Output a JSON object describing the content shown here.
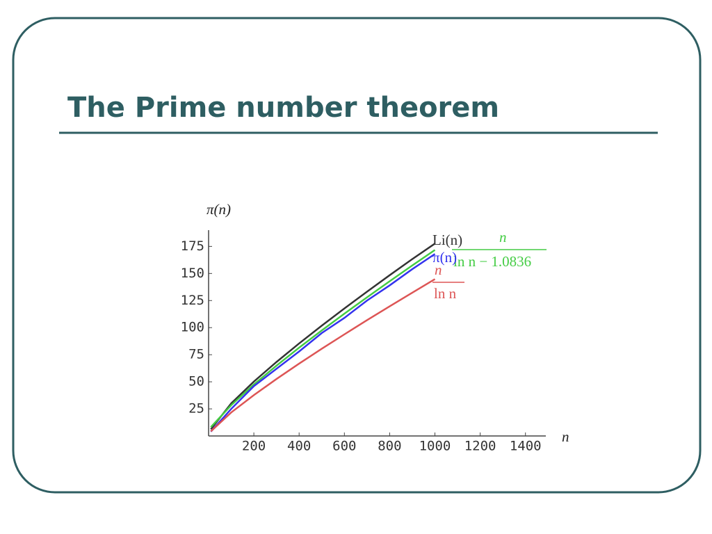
{
  "title": "The Prime number theorem",
  "chart_data": {
    "type": "line",
    "x_label": "n",
    "y_label": "π(n)",
    "x": [
      10,
      100,
      200,
      300,
      400,
      500,
      600,
      700,
      800,
      900,
      1000
    ],
    "xlim": [
      0,
      1490
    ],
    "ylim": [
      0,
      190
    ],
    "xticks": [
      200,
      400,
      600,
      800,
      1000,
      1200,
      1400
    ],
    "yticks": [
      25,
      50,
      75,
      100,
      125,
      150,
      175
    ],
    "series": [
      {
        "name": "Li(n)",
        "color": "#333333",
        "values": [
          6.2,
          30.1,
          50.2,
          68.3,
          85.4,
          101.8,
          117.7,
          133.2,
          148.4,
          163.3,
          177.6
        ]
      },
      {
        "name": {
          "numerator": "n",
          "denominator": "ln n − 1.0836"
        },
        "color": "#44cc44",
        "values": [
          8.2,
          28.4,
          47.5,
          64.9,
          81.5,
          97.4,
          112.9,
          128.0,
          142.8,
          157.4,
          171.7
        ]
      },
      {
        "name": "π(n)",
        "color": "#3333ee",
        "values": [
          4,
          25,
          46,
          62,
          78,
          95,
          109,
          125,
          139,
          154,
          168
        ]
      },
      {
        "name": {
          "numerator": "n",
          "denominator": "ln n"
        },
        "color": "#dd5555",
        "values": [
          4.3,
          21.7,
          37.7,
          52.6,
          66.8,
          80.5,
          93.8,
          106.9,
          119.7,
          132.3,
          144.8
        ]
      }
    ]
  }
}
